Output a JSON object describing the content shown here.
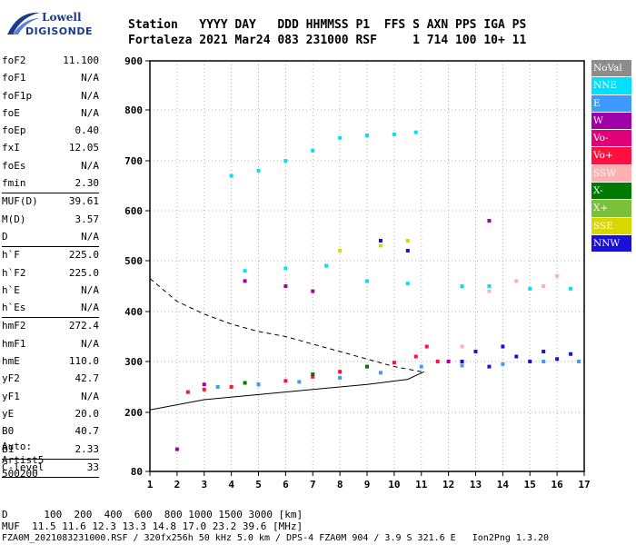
{
  "brand": {
    "line1": "Lowell",
    "line2": "DIGISONDE"
  },
  "header": {
    "line1": "Station   YYYY DAY   DDD HHMMSS P1  FFS S AXN PPS IGA PS",
    "line2": "Fortaleza 2021 Mar24 083 231000 RSF     1 714 100 10+ 11"
  },
  "params_groups": [
    [
      {
        "name": "foF2",
        "value": "11.100"
      },
      {
        "name": "foF1",
        "value": "N/A"
      },
      {
        "name": "foF1p",
        "value": "N/A"
      },
      {
        "name": "foE",
        "value": "N/A"
      },
      {
        "name": "foEp",
        "value": "0.40"
      },
      {
        "name": "fxI",
        "value": "12.05"
      },
      {
        "name": "foEs",
        "value": "N/A"
      },
      {
        "name": "fmin",
        "value": "2.30"
      }
    ],
    [
      {
        "name": "MUF(D)",
        "value": "39.61"
      },
      {
        "name": "M(D)",
        "value": "3.57"
      },
      {
        "name": "D",
        "value": "N/A"
      }
    ],
    [
      {
        "name": "h`F",
        "value": "225.0"
      },
      {
        "name": "h`F2",
        "value": "225.0"
      },
      {
        "name": "h`E",
        "value": "N/A"
      },
      {
        "name": "h`Es",
        "value": "N/A"
      }
    ],
    [
      {
        "name": "hmF2",
        "value": "272.4"
      },
      {
        "name": "hmF1",
        "value": "N/A"
      },
      {
        "name": "hmE",
        "value": "110.0"
      },
      {
        "name": "yF2",
        "value": "42.7"
      },
      {
        "name": "yF1",
        "value": "N/A"
      },
      {
        "name": "yE",
        "value": "20.0"
      },
      {
        "name": "B0",
        "value": "40.7"
      },
      {
        "name": "B1",
        "value": "2.33"
      }
    ],
    [
      {
        "name": "C-level",
        "value": "33"
      }
    ]
  ],
  "auto": {
    "line1": "Auto:",
    "line2": "Artist5",
    "line3": "500200"
  },
  "footer": {
    "d_line": "D      100  200  400  600  800 1000 1500 3000 [km]",
    "muf_line": "MUF  11.5 11.6 12.3 13.3 14.8 17.0 23.2 39.6 [MHz]",
    "file_line": "FZA0M_2021083231000.RSF / 320fx256h 50 kHz 5.0 km / DPS-4 FZA0M 904 / 3.9 S 321.6 E   Ion2Png 1.3.20"
  },
  "legend": [
    {
      "label": "NoVal",
      "color": "#8c8c8c"
    },
    {
      "label": "NNE",
      "color": "#00e0ff"
    },
    {
      "label": "E",
      "color": "#3d9bff"
    },
    {
      "label": "W",
      "color": "#a000a8"
    },
    {
      "label": "Vo-",
      "color": "#e0007a"
    },
    {
      "label": "Vo+",
      "color": "#ff1040"
    },
    {
      "label": "SSW",
      "color": "#ffb0b0"
    },
    {
      "label": "X-",
      "color": "#007a00"
    },
    {
      "label": "X+",
      "color": "#7ac03a"
    },
    {
      "label": "SSE",
      "color": "#d8d800"
    },
    {
      "label": "NNW",
      "color": "#1a10d8"
    }
  ],
  "chart_data": {
    "type": "scatter",
    "title": "",
    "xlabel": "",
    "ylabel": "",
    "x_ticks": [
      "1",
      "2",
      "3",
      "4",
      "5",
      "6",
      "7",
      "8",
      "9",
      "10",
      "11",
      "12",
      "13",
      "14",
      "15",
      "16",
      "17"
    ],
    "y_ticks": [
      "900",
      "800",
      "700",
      "600",
      "500",
      "400",
      "300",
      "200",
      "80"
    ],
    "xlim": [
      1,
      17
    ],
    "ylim": [
      80,
      900
    ],
    "grid": true,
    "legend_position": "right",
    "series": [
      {
        "name": "Vo+",
        "color": "#ff1040",
        "points": [
          [
            2.4,
            240
          ],
          [
            3.0,
            245
          ],
          [
            4.0,
            250
          ],
          [
            5.0,
            255
          ],
          [
            6.0,
            262
          ],
          [
            7.0,
            270
          ],
          [
            8.0,
            280
          ],
          [
            9.0,
            290
          ],
          [
            10.0,
            298
          ],
          [
            10.8,
            310
          ],
          [
            11.2,
            330
          ],
          [
            11.6,
            300
          ]
        ]
      },
      {
        "name": "NNE",
        "color": "#00e0ff",
        "points": [
          [
            4.0,
            670
          ],
          [
            5.0,
            680
          ],
          [
            6.0,
            700
          ],
          [
            7.0,
            720
          ],
          [
            8.0,
            745
          ],
          [
            9.0,
            750
          ],
          [
            10.0,
            752
          ],
          [
            10.8,
            756
          ],
          [
            4.5,
            480
          ],
          [
            6.0,
            485
          ],
          [
            7.5,
            490
          ],
          [
            9.0,
            460
          ],
          [
            10.5,
            455
          ],
          [
            12.5,
            450
          ],
          [
            13.5,
            450
          ],
          [
            15.0,
            445
          ],
          [
            16.5,
            445
          ]
        ]
      },
      {
        "name": "E",
        "color": "#3d9bff",
        "points": [
          [
            3.5,
            250
          ],
          [
            5.0,
            255
          ],
          [
            6.5,
            260
          ],
          [
            8.0,
            268
          ],
          [
            9.5,
            278
          ],
          [
            11.0,
            290
          ],
          [
            12.5,
            292
          ],
          [
            14.0,
            295
          ],
          [
            15.5,
            300
          ],
          [
            16.8,
            300
          ]
        ]
      },
      {
        "name": "NNW",
        "color": "#1a10d8",
        "points": [
          [
            12.5,
            300
          ],
          [
            13.0,
            320
          ],
          [
            13.5,
            290
          ],
          [
            14.0,
            330
          ],
          [
            14.5,
            310
          ],
          [
            15.0,
            300
          ],
          [
            15.5,
            320
          ],
          [
            16.0,
            305
          ],
          [
            16.5,
            315
          ],
          [
            10.5,
            520
          ],
          [
            9.5,
            540
          ]
        ]
      },
      {
        "name": "W",
        "color": "#a000a8",
        "points": [
          [
            2.0,
            125
          ],
          [
            3.0,
            255
          ],
          [
            4.5,
            460
          ],
          [
            6.0,
            450
          ],
          [
            7.0,
            440
          ],
          [
            12.0,
            300
          ],
          [
            13.5,
            580
          ]
        ]
      },
      {
        "name": "SSW",
        "color": "#ffb0b0",
        "points": [
          [
            12.5,
            330
          ],
          [
            13.5,
            440
          ],
          [
            14.5,
            460
          ],
          [
            15.5,
            450
          ],
          [
            16.0,
            470
          ]
        ]
      },
      {
        "name": "X-",
        "color": "#007a00",
        "points": [
          [
            4.5,
            258
          ],
          [
            7.0,
            275
          ],
          [
            9.0,
            290
          ]
        ]
      },
      {
        "name": "SSE",
        "color": "#d8d800",
        "points": [
          [
            8.0,
            520
          ],
          [
            9.5,
            530
          ],
          [
            10.5,
            540
          ]
        ]
      }
    ],
    "profile_line": {
      "points": [
        [
          1.0,
          205
        ],
        [
          3,
          225
        ],
        [
          5,
          235
        ],
        [
          7,
          245
        ],
        [
          9,
          255
        ],
        [
          10.5,
          265
        ],
        [
          11.1,
          280
        ]
      ]
    },
    "muf_curve": {
      "points": [
        [
          1.0,
          465
        ],
        [
          2.0,
          420
        ],
        [
          3.0,
          395
        ],
        [
          4.0,
          375
        ],
        [
          5.0,
          360
        ],
        [
          6.0,
          350
        ],
        [
          7.0,
          335
        ],
        [
          8.0,
          320
        ],
        [
          9.0,
          305
        ],
        [
          10.0,
          290
        ],
        [
          11.0,
          280
        ]
      ]
    }
  }
}
